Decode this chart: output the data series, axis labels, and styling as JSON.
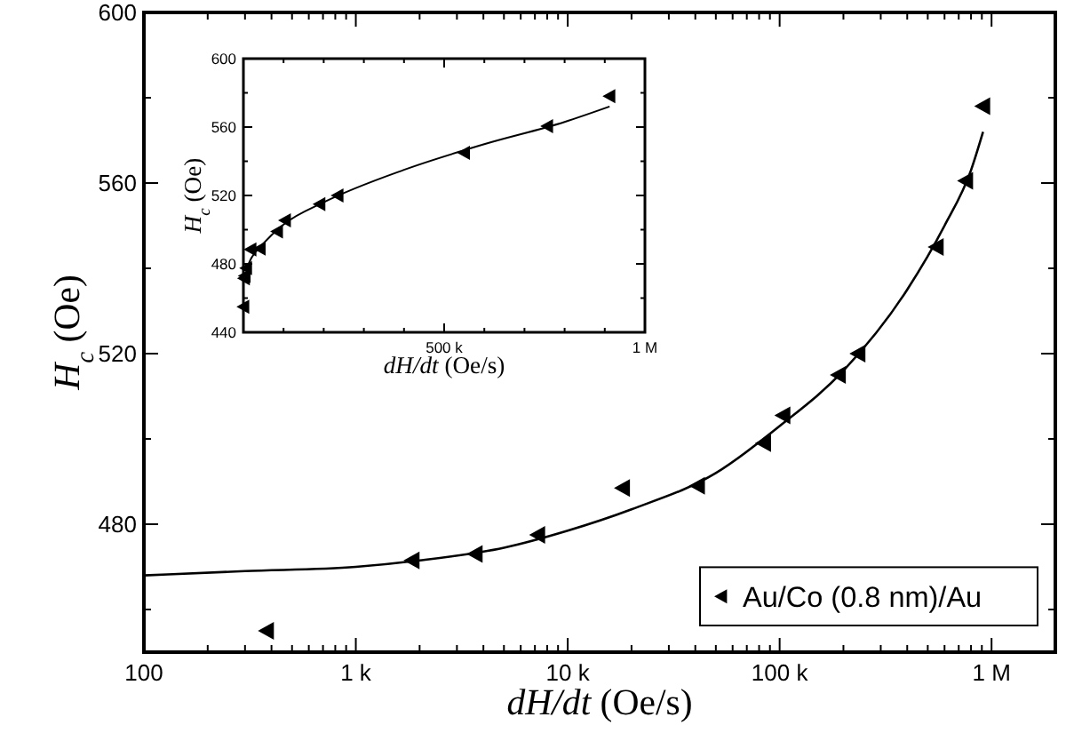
{
  "chart_data": [
    {
      "type": "scatter",
      "xlabel": "dH/dt (Oe/s)",
      "ylabel": "H$_{c}$ (Oe)",
      "log": "x",
      "xlim": [
        100,
        2000000
      ],
      "ylim": [
        450,
        600
      ],
      "xticks": [
        {
          "value": 100,
          "label": "100"
        },
        {
          "value": 200,
          "label": null
        },
        {
          "value": 300,
          "label": null
        },
        {
          "value": 400,
          "label": null
        },
        {
          "value": 500,
          "label": null
        },
        {
          "value": 600,
          "label": null
        },
        {
          "value": 700,
          "label": null
        },
        {
          "value": 800,
          "label": null
        },
        {
          "value": 900,
          "label": null
        },
        {
          "value": 1000,
          "label": "1 k"
        },
        {
          "value": 2000,
          "label": null
        },
        {
          "value": 3000,
          "label": null
        },
        {
          "value": 4000,
          "label": null
        },
        {
          "value": 5000,
          "label": null
        },
        {
          "value": 6000,
          "label": null
        },
        {
          "value": 7000,
          "label": null
        },
        {
          "value": 8000,
          "label": null
        },
        {
          "value": 9000,
          "label": null
        },
        {
          "value": 10000,
          "label": "10 k"
        },
        {
          "value": 20000,
          "label": null
        },
        {
          "value": 30000,
          "label": null
        },
        {
          "value": 40000,
          "label": null
        },
        {
          "value": 50000,
          "label": null
        },
        {
          "value": 60000,
          "label": null
        },
        {
          "value": 70000,
          "label": null
        },
        {
          "value": 80000,
          "label": null
        },
        {
          "value": 90000,
          "label": null
        },
        {
          "value": 100000,
          "label": "100 k"
        },
        {
          "value": 200000,
          "label": null
        },
        {
          "value": 300000,
          "label": null
        },
        {
          "value": 400000,
          "label": null
        },
        {
          "value": 500000,
          "label": null
        },
        {
          "value": 600000,
          "label": null
        },
        {
          "value": 700000,
          "label": null
        },
        {
          "value": 800000,
          "label": null
        },
        {
          "value": 900000,
          "label": null
        },
        {
          "value": 1000000,
          "label": "1 M"
        },
        {
          "value": 2000000,
          "label": null
        }
      ],
      "yticks": [
        {
          "value": 460,
          "label": null
        },
        480,
        {
          "value": 500,
          "label": null
        },
        520,
        {
          "value": 540,
          "label": null
        },
        560,
        {
          "value": 580,
          "label": null
        },
        600
      ],
      "grid": false,
      "legend": "bottom right",
      "series": [
        {
          "name": "Au/Co (0.8 nm)/Au",
          "marker": "triangle",
          "color": "#000000",
          "x": [
            380,
            1850,
            3670,
            7240,
            18200,
            41100,
            84300,
            104000,
            190000,
            235000,
            550000,
            757000,
            912000
          ],
          "values": [
            455,
            471.5,
            473,
            477.5,
            488.5,
            489,
            499,
            505.5,
            515,
            520,
            545,
            560.5,
            578
          ]
        },
        {
          "type": "line",
          "color": "#000000",
          "line_style": "solid",
          "x": [
            100,
            300,
            1000,
            2000,
            5000,
            10000,
            20000,
            50000,
            100000,
            200000,
            400000,
            600000,
            800000,
            912000
          ],
          "values": [
            468,
            469,
            470,
            471.5,
            474.5,
            478.5,
            483.5,
            492,
            503,
            516,
            535,
            550,
            563,
            572
          ]
        }
      ]
    },
    {
      "type": "scatter",
      "xlabel": "dH/dt (Oe/s)",
      "ylabel": "H$_{c}$ (Oe)",
      "xlim": [
        0,
        1000000
      ],
      "ylim": [
        440,
        600
      ],
      "xticks": [
        {
          "value": 0,
          "label": null
        },
        {
          "value": 100000,
          "label": null
        },
        {
          "value": 200000,
          "label": null
        },
        {
          "value": 300000,
          "label": null
        },
        {
          "value": 400000,
          "label": null
        },
        {
          "value": 500000,
          "label": "500 k"
        },
        {
          "value": 600000,
          "label": null
        },
        {
          "value": 700000,
          "label": null
        },
        {
          "value": 800000,
          "label": null
        },
        {
          "value": 900000,
          "label": null
        },
        {
          "value": 1000000,
          "label": "1 M"
        }
      ],
      "yticks": [
        440,
        {
          "value": 460,
          "label": null
        },
        480,
        {
          "value": 500,
          "label": null
        },
        520,
        {
          "value": 540,
          "label": null
        },
        560,
        {
          "value": 580,
          "label": null
        },
        600
      ],
      "grid": false,
      "legend": false,
      "series": [
        {
          "marker": "triangle",
          "color": "#000000",
          "x": [
            380,
            1850,
            3670,
            7240,
            18200,
            41100,
            84300,
            104000,
            190000,
            235000,
            550000,
            757000,
            912000
          ],
          "values": [
            455,
            471.5,
            473,
            477.5,
            488.5,
            489,
            499,
            505.5,
            515,
            520,
            545,
            560.5,
            578
          ]
        },
        {
          "type": "line",
          "color": "#000000",
          "line_style": "solid",
          "x": [
            10000,
            20000,
            50000,
            100000,
            200000,
            400000,
            600000,
            800000,
            912000
          ],
          "values": [
            478.5,
            483.5,
            492,
            503,
            516,
            535,
            550,
            563,
            572
          ]
        }
      ]
    }
  ]
}
